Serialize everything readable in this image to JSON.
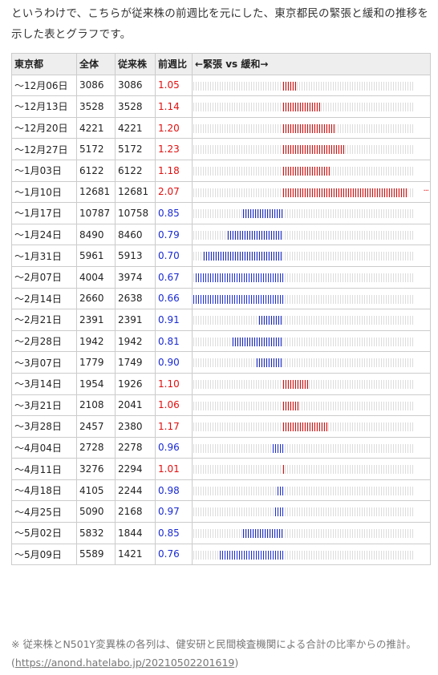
{
  "intro": "というわけで、こちらが従来株の前週比を元にした、東京都民の緊張と緩和の推移を示した表とグラフです。",
  "table": {
    "headers": [
      "東京都",
      "全体",
      "従来株",
      "前週比",
      "←緊張 vs 緩和→"
    ],
    "rows": [
      {
        "week": "～12月06日",
        "total": "3086",
        "conventional": "3086",
        "ratio": "1.05"
      },
      {
        "week": "～12月13日",
        "total": "3528",
        "conventional": "3528",
        "ratio": "1.14"
      },
      {
        "week": "～12月20日",
        "total": "4221",
        "conventional": "4221",
        "ratio": "1.20"
      },
      {
        "week": "～12月27日",
        "total": "5172",
        "conventional": "5172",
        "ratio": "1.23"
      },
      {
        "week": "～1月03日",
        "total": "6122",
        "conventional": "6122",
        "ratio": "1.18"
      },
      {
        "week": "～1月10日",
        "total": "12681",
        "conventional": "12681",
        "ratio": "2.07"
      },
      {
        "week": "～1月17日",
        "total": "10787",
        "conventional": "10758",
        "ratio": "0.85"
      },
      {
        "week": "～1月24日",
        "total": "8490",
        "conventional": "8460",
        "ratio": "0.79"
      },
      {
        "week": "～1月31日",
        "total": "5961",
        "conventional": "5913",
        "ratio": "0.70"
      },
      {
        "week": "～2月07日",
        "total": "4004",
        "conventional": "3974",
        "ratio": "0.67"
      },
      {
        "week": "～2月14日",
        "total": "2660",
        "conventional": "2638",
        "ratio": "0.66"
      },
      {
        "week": "～2月21日",
        "total": "2391",
        "conventional": "2391",
        "ratio": "0.91"
      },
      {
        "week": "～2月28日",
        "total": "1942",
        "conventional": "1942",
        "ratio": "0.81"
      },
      {
        "week": "～3月07日",
        "total": "1779",
        "conventional": "1749",
        "ratio": "0.90"
      },
      {
        "week": "～3月14日",
        "total": "1954",
        "conventional": "1926",
        "ratio": "1.10"
      },
      {
        "week": "～3月21日",
        "total": "2108",
        "conventional": "2041",
        "ratio": "1.06"
      },
      {
        "week": "～3月28日",
        "total": "2457",
        "conventional": "2380",
        "ratio": "1.17"
      },
      {
        "week": "～4月04日",
        "total": "2728",
        "conventional": "2278",
        "ratio": "0.96"
      },
      {
        "week": "～4月11日",
        "total": "3276",
        "conventional": "2294",
        "ratio": "1.01"
      },
      {
        "week": "～4月18日",
        "total": "4105",
        "conventional": "2244",
        "ratio": "0.98"
      },
      {
        "week": "～4月25日",
        "total": "5090",
        "conventional": "2168",
        "ratio": "0.97"
      },
      {
        "week": "～5月02日",
        "total": "5832",
        "conventional": "1844",
        "ratio": "0.85"
      },
      {
        "week": "～5月09日",
        "total": "5589",
        "conventional": "1421",
        "ratio": "0.76"
      }
    ]
  },
  "colors": {
    "tension": "#e01010",
    "relaxation": "#1a2bd0",
    "track": "#dcdcdc"
  },
  "footnote": {
    "text": "※ 従来株とN501Y変異株の各列は、健安研と民間検査機関による合計の比率からの推計。(",
    "link": "https://anond.hatelabo.jp/20210502201619",
    "close": ")"
  }
}
